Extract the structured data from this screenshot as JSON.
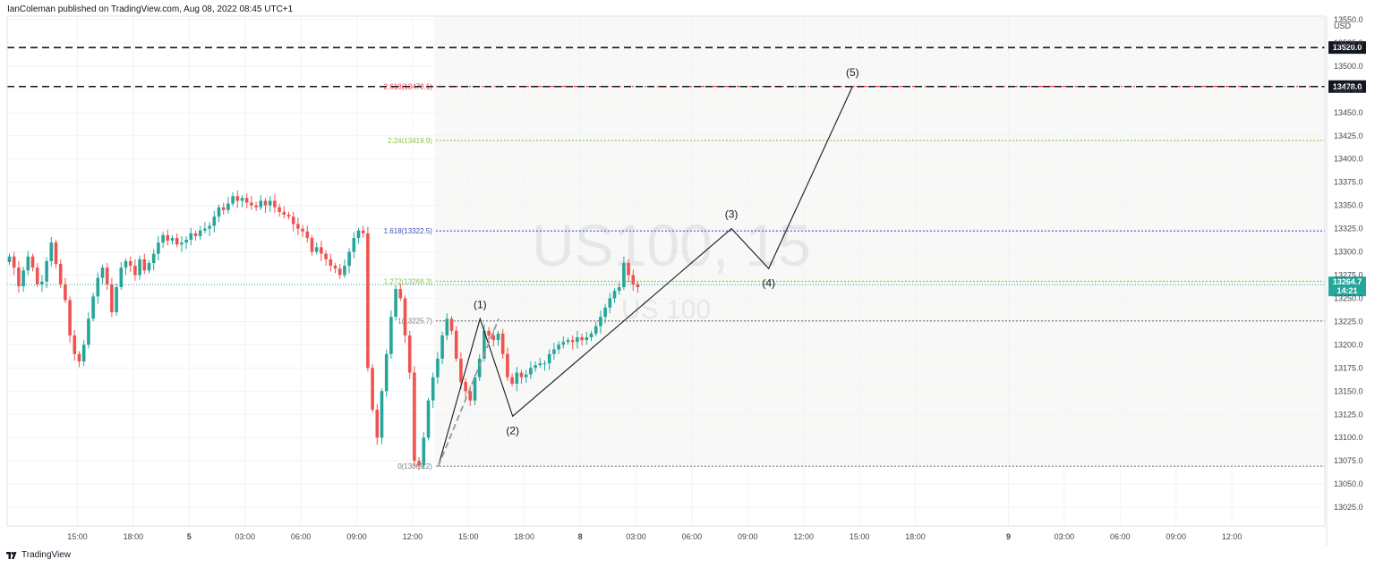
{
  "header": {
    "attribution": "IanColeman published on TradingView.com, Aug 08, 2022 08:45 UTC+1"
  },
  "footer": {
    "brand": "TradingView"
  },
  "colors": {
    "up": "#26a69a",
    "down": "#ef5350",
    "fib_blue": "#3f51b5",
    "fib_green": "#8bc34a",
    "fib_red": "#f23645",
    "last_price": "#26a69a",
    "hline": "#131722"
  },
  "chart_data": {
    "type": "candlestick",
    "symbol_watermark": "US100, 15",
    "symbol_subtitle": "US 100",
    "currency": "USD",
    "ylim": [
      13012,
      13557
    ],
    "y_ticks": [
      13025,
      13050,
      13075,
      13100,
      13125,
      13150,
      13175,
      13200,
      13225,
      13250,
      13275,
      13300,
      13325,
      13350,
      13375,
      13400,
      13425,
      13450,
      13475,
      13500,
      13525,
      13550
    ],
    "y_tick_labels": [
      "13025.0",
      "13050.0",
      "13075.0",
      "13100.0",
      "13125.0",
      "13150.0",
      "13175.0",
      "13200.0",
      "13225.0",
      "13250.0",
      "13275.0",
      "13300.0",
      "13325.0",
      "13350.0",
      "13375.0",
      "13400.0",
      "13425.0",
      "13450.0",
      "13475.0",
      "13500.0",
      "13525.0",
      "13550.0"
    ],
    "x_ticks": [
      {
        "label": "15:00",
        "bar": 15
      },
      {
        "label": "18:00",
        "bar": 27
      },
      {
        "label": "5",
        "bar": 39
      },
      {
        "label": "03:00",
        "bar": 51
      },
      {
        "label": "06:00",
        "bar": 63
      },
      {
        "label": "09:00",
        "bar": 75
      },
      {
        "label": "12:00",
        "bar": 87
      },
      {
        "label": "15:00",
        "bar": 99
      },
      {
        "label": "18:00",
        "bar": 111
      },
      {
        "label": "8",
        "bar": 123
      },
      {
        "label": "03:00",
        "bar": 135
      },
      {
        "label": "06:00",
        "bar": 147
      },
      {
        "label": "09:00",
        "bar": 159
      },
      {
        "label": "12:00",
        "bar": 171
      },
      {
        "label": "15:00",
        "bar": 183
      },
      {
        "label": "18:00",
        "bar": 195
      },
      {
        "label": "9",
        "bar": 215
      },
      {
        "label": "03:00",
        "bar": 227
      },
      {
        "label": "06:00",
        "bar": 239
      },
      {
        "label": "09:00",
        "bar": 251
      },
      {
        "label": "12:00",
        "bar": 263
      }
    ],
    "closes": [
      13295,
      13283,
      13263,
      13280,
      13295,
      13283,
      13265,
      13268,
      13290,
      13310,
      13287,
      13265,
      13248,
      13210,
      13190,
      13182,
      13200,
      13228,
      13252,
      13272,
      13283,
      13265,
      13235,
      13262,
      13283,
      13290,
      13285,
      13275,
      13292,
      13280,
      13288,
      13298,
      13310,
      13318,
      13312,
      13315,
      13308,
      13310,
      13313,
      13320,
      13317,
      13323,
      13325,
      13328,
      13338,
      13348,
      13345,
      13352,
      13360,
      13355,
      13358,
      13353,
      13350,
      13348,
      13355,
      13350,
      13355,
      13348,
      13343,
      13340,
      13338,
      13330,
      13325,
      13322,
      13315,
      13300,
      13305,
      13298,
      13292,
      13285,
      13282,
      13275,
      13285,
      13300,
      13315,
      13323,
      13320,
      13175,
      13130,
      13100,
      13150,
      13190,
      13230,
      13260,
      13250,
      13210,
      13170,
      13075,
      13070,
      13100,
      13140,
      13165,
      13185,
      13210,
      13228,
      13215,
      13185,
      13160,
      13150,
      13140,
      13165,
      13185,
      13215,
      13210,
      13205,
      13212,
      13190,
      13165,
      13158,
      13170,
      13165,
      13168,
      13175,
      13178,
      13180,
      13180,
      13190,
      13195,
      13200,
      13203,
      13205,
      13203,
      13208,
      13205,
      13208,
      13212,
      13220,
      13230,
      13240,
      13250,
      13258,
      13262,
      13288,
      13275,
      13265,
      13262
    ],
    "last_price": {
      "value": 13264.7,
      "label": "13264.7",
      "countdown": "14:21"
    },
    "horizontal_lines": [
      {
        "value": 13520.0,
        "label": "13520.0"
      },
      {
        "value": 13478.0,
        "label": "13478.0"
      }
    ],
    "fib_levels": [
      {
        "ratio_label": "2.618(13478.1)",
        "value": 13478.1,
        "color": "#f23645",
        "dash": "6 3 2 3"
      },
      {
        "ratio_label": "2.24(13419.9)",
        "value": 13419.9,
        "color": "#8bc34a",
        "dash": "2 2"
      },
      {
        "ratio_label": "1.618(13322.5)",
        "value": 13322.5,
        "color": "#3f51b5",
        "dash": "2 2"
      },
      {
        "ratio_label": "1.272(13268.3)",
        "value": 13268.3,
        "color": "#8bc34a",
        "dash": "2 2"
      },
      {
        "ratio_label": "1(13225.7)",
        "value": 13225.7,
        "color": "#787b86",
        "dash": "2 2"
      },
      {
        "ratio_label": "0(13069.2)",
        "value": 13069.2,
        "color": "#787b86",
        "dash": "2 2"
      }
    ],
    "fib_region": {
      "bar_start": 92,
      "value_top": 13550,
      "value_bottom": 13069.2
    },
    "elliott_waves": [
      {
        "label": "(1)",
        "bar": 101.5,
        "value": 13228,
        "label_pos": "above"
      },
      {
        "label": "(2)",
        "bar": 108.5,
        "value": 13123,
        "label_pos": "below"
      },
      {
        "label": "(3)",
        "bar": 155.5,
        "value": 13325,
        "label_pos": "above"
      },
      {
        "label": "(4)",
        "bar": 163.5,
        "value": 13282,
        "label_pos": "below"
      },
      {
        "label": "(5)",
        "bar": 181.5,
        "value": 13478,
        "label_pos": "above"
      }
    ],
    "wave_origin": {
      "bar": 92.5,
      "value": 13069
    },
    "trend_line": {
      "from": {
        "bar": 92.5,
        "value": 13069
      },
      "to": {
        "bar": 105.5,
        "value": 13228
      }
    }
  }
}
